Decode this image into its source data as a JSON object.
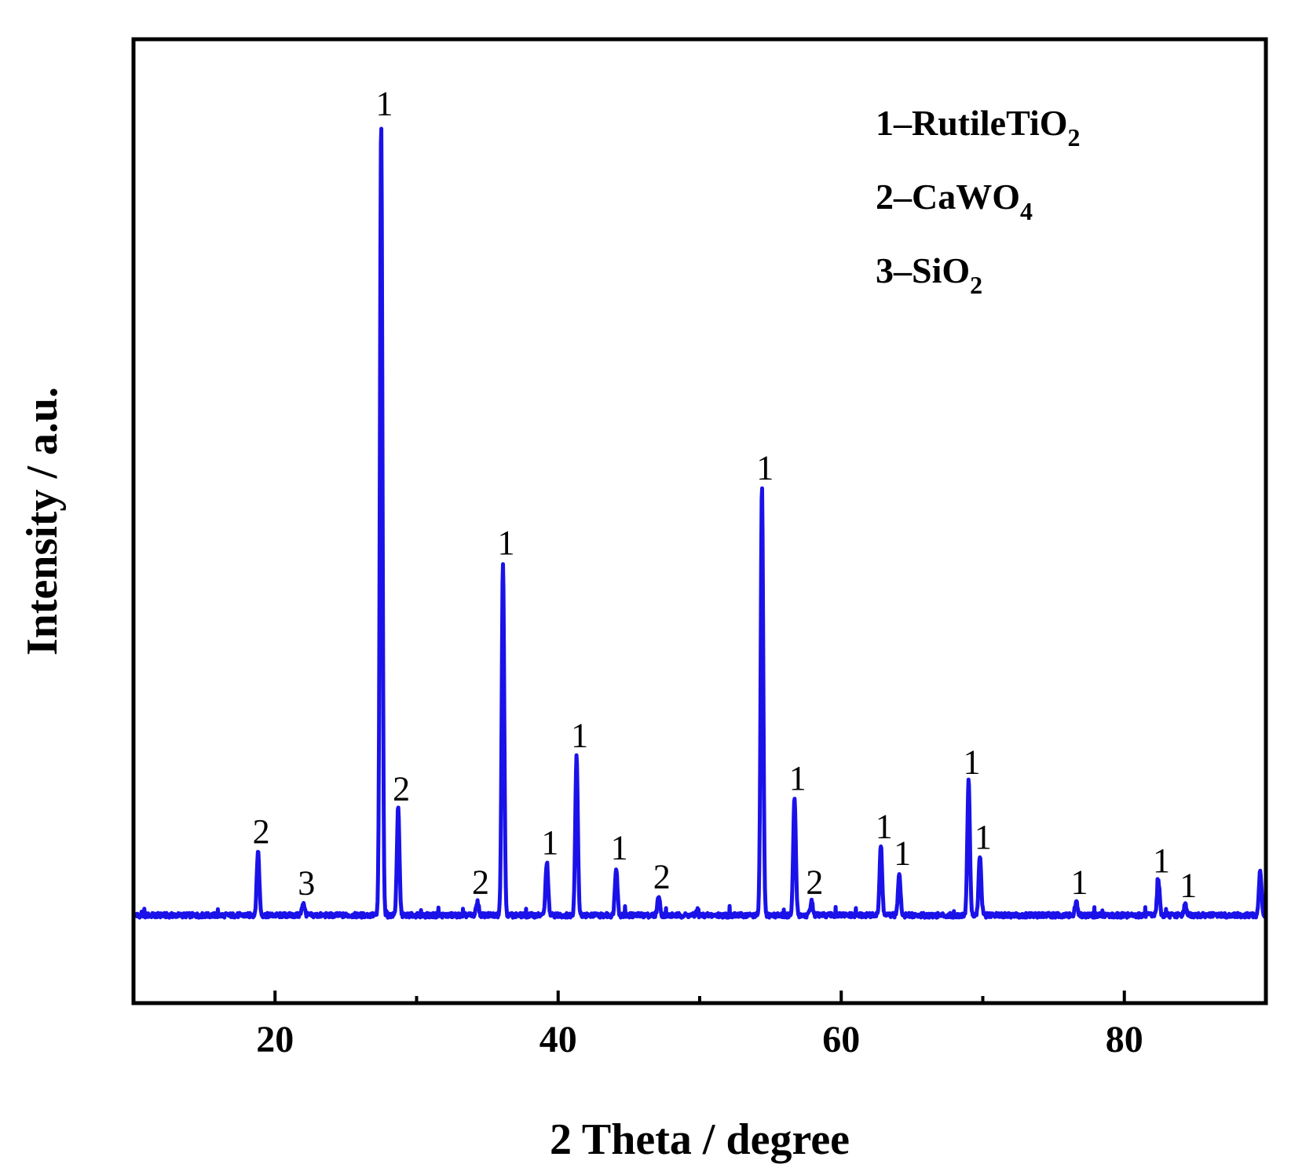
{
  "chart_data": {
    "type": "line",
    "xlabel": "2 Theta / degree",
    "ylabel": "Intensity / a.u.",
    "xlim": [
      10,
      90
    ],
    "ylim": [
      -8,
      82
    ],
    "x_ticks": [
      20,
      40,
      60,
      80
    ],
    "y_ticks": [],
    "grid": false,
    "colors": {
      "series": "#1a12e8",
      "axes": "#000000"
    },
    "legend": {
      "placement": "top-right",
      "entries": [
        {
          "prefix": "1–RutileTiO",
          "sub": "2"
        },
        {
          "prefix": "2–CaWO",
          "sub": "4"
        },
        {
          "prefix": "3–SiO",
          "sub": "2"
        }
      ]
    },
    "series": [
      {
        "baseline": 0.2,
        "peaks": [
          {
            "x": 18.8,
            "y": 6.0,
            "label": "2"
          },
          {
            "x": 22.0,
            "y": 1.2,
            "label": "3"
          },
          {
            "x": 27.5,
            "y": 74.0,
            "label": "1"
          },
          {
            "x": 28.7,
            "y": 10.0,
            "label": "2"
          },
          {
            "x": 34.3,
            "y": 1.3,
            "label": "2"
          },
          {
            "x": 36.1,
            "y": 33.0,
            "label": "1"
          },
          {
            "x": 39.2,
            "y": 5.0,
            "label": "1"
          },
          {
            "x": 41.3,
            "y": 15.0,
            "label": "1"
          },
          {
            "x": 44.1,
            "y": 4.5,
            "label": "1"
          },
          {
            "x": 47.1,
            "y": 1.8,
            "label": "2"
          },
          {
            "x": 54.4,
            "y": 40.0,
            "label": "1"
          },
          {
            "x": 56.7,
            "y": 11.0,
            "label": "1"
          },
          {
            "x": 57.9,
            "y": 1.3,
            "label": "2"
          },
          {
            "x": 62.8,
            "y": 6.5,
            "label": "1"
          },
          {
            "x": 64.1,
            "y": 4.0,
            "label": "1"
          },
          {
            "x": 69.0,
            "y": 12.5,
            "label": "1"
          },
          {
            "x": 69.8,
            "y": 5.5,
            "label": "1"
          },
          {
            "x": 76.6,
            "y": 1.3,
            "label": "1"
          },
          {
            "x": 82.4,
            "y": 3.3,
            "label": "1"
          },
          {
            "x": 84.3,
            "y": 1.0,
            "label": "1"
          },
          {
            "x": 89.6,
            "y": 4.2,
            "label": ""
          }
        ]
      }
    ]
  }
}
